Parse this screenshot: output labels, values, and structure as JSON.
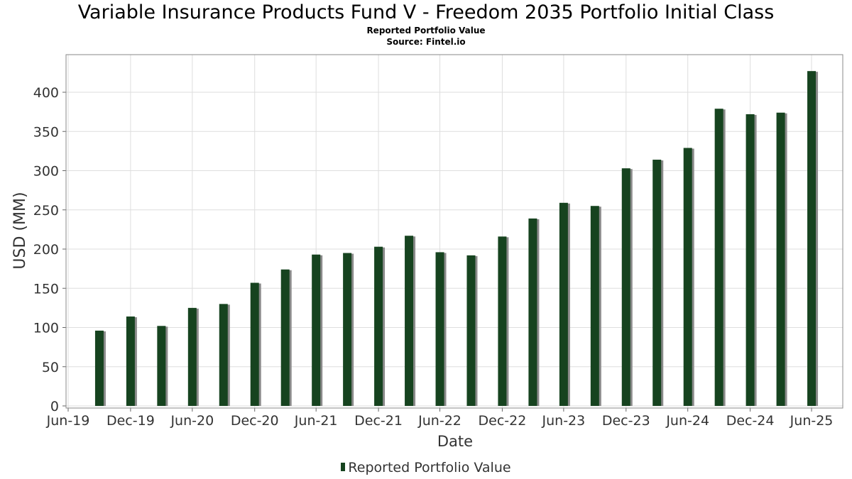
{
  "chart_data": {
    "type": "bar",
    "title": "Variable Insurance Products Fund V - Freedom 2035 Portfolio Initial Class",
    "subtitle": "Reported Portfolio Value",
    "source": "Source: Fintel.io",
    "xlabel": "Date",
    "ylabel": "USD (MM)",
    "ylim": [
      0,
      450
    ],
    "yticks": [
      0,
      50,
      100,
      150,
      200,
      250,
      300,
      350,
      400
    ],
    "xlim": [
      "2019-06-30",
      "2025-09-30"
    ],
    "xticks": [
      {
        "label": "Jun-19",
        "date": "2019-06-30"
      },
      {
        "label": "Dec-19",
        "date": "2019-12-31"
      },
      {
        "label": "Jun-20",
        "date": "2020-06-30"
      },
      {
        "label": "Dec-20",
        "date": "2020-12-31"
      },
      {
        "label": "Jun-21",
        "date": "2021-06-30"
      },
      {
        "label": "Dec-21",
        "date": "2021-12-31"
      },
      {
        "label": "Jun-22",
        "date": "2022-06-30"
      },
      {
        "label": "Dec-22",
        "date": "2022-12-31"
      },
      {
        "label": "Jun-23",
        "date": "2023-06-30"
      },
      {
        "label": "Dec-23",
        "date": "2023-12-31"
      },
      {
        "label": "Jun-24",
        "date": "2024-06-30"
      },
      {
        "label": "Dec-24",
        "date": "2024-12-31"
      },
      {
        "label": "Jun-25",
        "date": "2025-06-30"
      }
    ],
    "grid": true,
    "legend_position": "bottom",
    "series": [
      {
        "name": "Reported Portfolio Value",
        "color": "#16431f",
        "x": [
          "2019-09-30",
          "2019-12-31",
          "2020-03-31",
          "2020-06-30",
          "2020-09-30",
          "2020-12-31",
          "2021-03-31",
          "2021-06-30",
          "2021-09-30",
          "2021-12-31",
          "2022-03-31",
          "2022-06-30",
          "2022-09-30",
          "2022-12-31",
          "2023-03-31",
          "2023-06-30",
          "2023-09-30",
          "2023-12-31",
          "2024-03-31",
          "2024-06-30",
          "2024-09-30",
          "2024-12-31",
          "2025-03-31",
          "2025-06-30"
        ],
        "values": [
          96,
          114,
          102,
          125,
          130,
          157,
          174,
          193,
          195,
          203,
          217,
          196,
          192,
          216,
          239,
          259,
          255,
          303,
          314,
          329,
          379,
          372,
          374,
          427
        ]
      }
    ]
  }
}
